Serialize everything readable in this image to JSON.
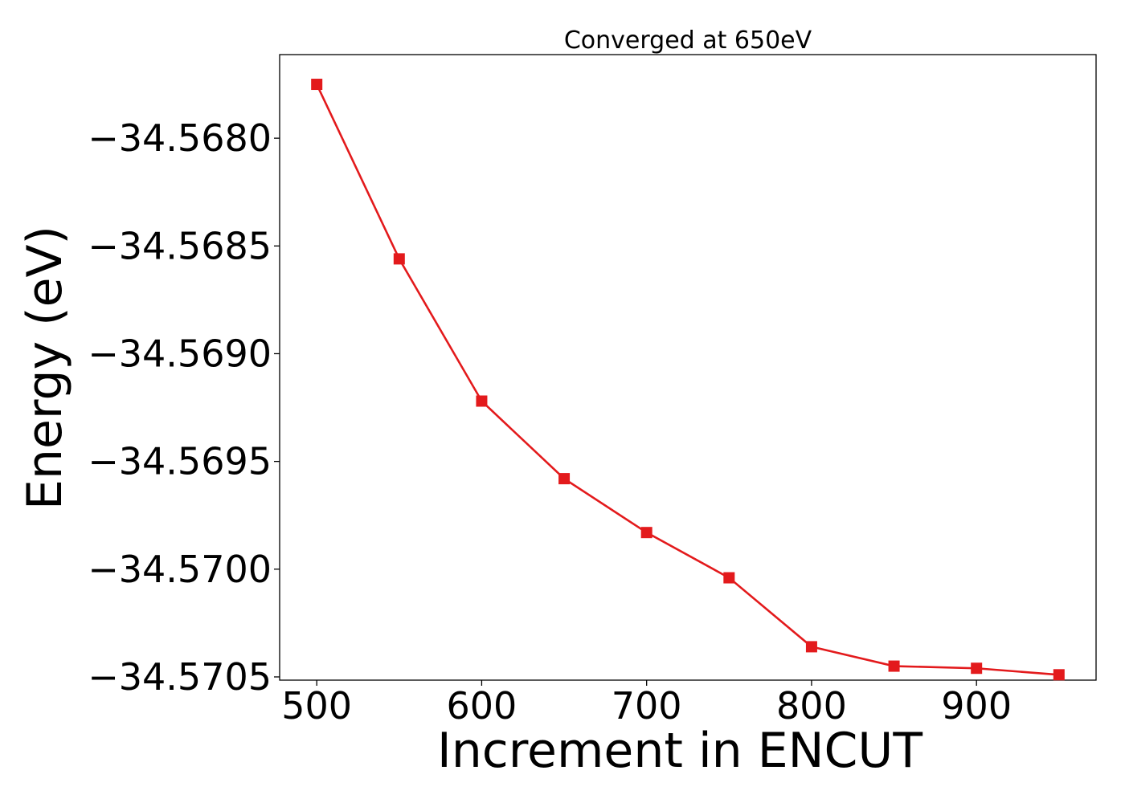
{
  "chart_data": {
    "type": "line",
    "title": "Converged at 650eV",
    "xlabel": "Increment in ENCUT",
    "ylabel": "Energy (eV)",
    "x": [
      500,
      550,
      600,
      650,
      700,
      750,
      800,
      850,
      900,
      950
    ],
    "series": [
      {
        "values": [
          -34.56775,
          -34.56856,
          -34.56922,
          -34.56958,
          -34.56983,
          -34.57004,
          -34.57036,
          -34.57045,
          -34.57046,
          -34.57049
        ],
        "color": "#e31a1c",
        "marker": "square"
      }
    ],
    "xticks": [
      500,
      600,
      700,
      800,
      900
    ],
    "xtick_labels": [
      "500",
      "600",
      "700",
      "800",
      "900"
    ],
    "yticks": [
      -34.568,
      -34.5685,
      -34.569,
      -34.5695,
      -34.57,
      -34.5705
    ],
    "ytick_labels": [
      "−34.5680",
      "−34.5685",
      "−34.5690",
      "−34.5695",
      "−34.5700",
      "−34.5705"
    ],
    "xlim": [
      477.5,
      972.5
    ],
    "ylim": [
      -34.570515,
      -34.567612
    ],
    "grid": false,
    "legend": "none"
  }
}
